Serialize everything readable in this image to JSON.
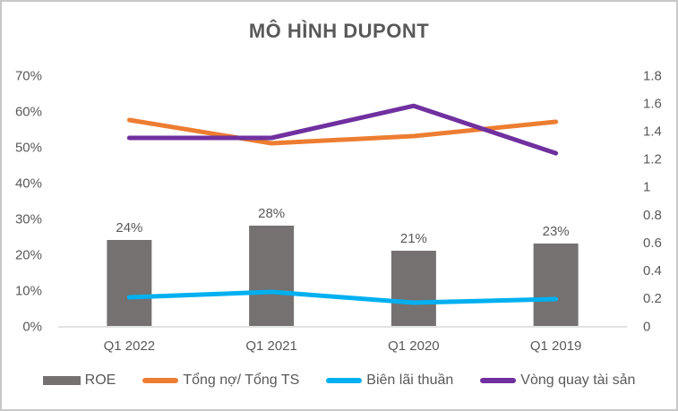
{
  "chart_data": {
    "type": "combo-bar-line",
    "title": "MÔ HÌNH DUPONT",
    "categories": [
      "Q1 2022",
      "Q1 2021",
      "Q1 2020",
      "Q1 2019"
    ],
    "left_axis": {
      "min": 0,
      "max": 0.7,
      "step": 0.1,
      "format": "percent",
      "ticks": [
        "0%",
        "10%",
        "20%",
        "30%",
        "40%",
        "50%",
        "60%",
        "70%"
      ]
    },
    "right_axis": {
      "min": 0,
      "max": 1.8,
      "step": 0.2,
      "ticks": [
        "0",
        "0.2",
        "0.4",
        "0.6",
        "0.8",
        "1",
        "1.2",
        "1.4",
        "1.6",
        "1.8"
      ]
    },
    "series": [
      {
        "name": "ROE",
        "type": "bar",
        "axis": "left",
        "color": "#767171",
        "values": [
          0.24,
          0.28,
          0.21,
          0.23
        ],
        "labels": [
          "24%",
          "28%",
          "21%",
          "23%"
        ]
      },
      {
        "name": "Tổng nợ/ Tổng TS",
        "type": "line",
        "axis": "left",
        "color": "#ED7D31",
        "values": [
          0.575,
          0.51,
          0.53,
          0.57
        ]
      },
      {
        "name": "Biên lãi thuần",
        "type": "line",
        "axis": "left",
        "color": "#00B0F0",
        "values": [
          0.08,
          0.095,
          0.065,
          0.075
        ]
      },
      {
        "name": "Vòng quay tài sản",
        "type": "line",
        "axis": "right",
        "color": "#7030A0",
        "values": [
          1.35,
          1.35,
          1.58,
          1.24
        ]
      }
    ],
    "grid": false,
    "legend_position": "bottom",
    "style": {
      "axis_line_color": "#d9d9d9",
      "tick_label_color": "#595959",
      "data_label_color": "#404040",
      "title_color": "#595959"
    }
  }
}
